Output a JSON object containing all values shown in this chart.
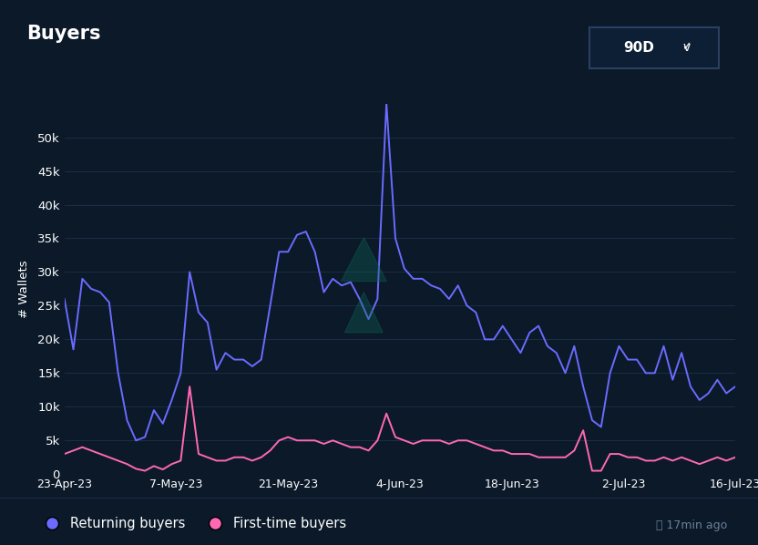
{
  "title": "Buyers",
  "badge_text": "90D  ⌄",
  "ylabel": "# Wallets",
  "footer_text": "⌛ 17min ago",
  "bg_color": "#0b1929",
  "plot_bg_color": "#0b1929",
  "grid_color": "#1a2e45",
  "returning_color": "#6b6bff",
  "firsttime_color": "#ff69b4",
  "ylim": [
    0,
    55000
  ],
  "yticks": [
    0,
    5000,
    10000,
    15000,
    20000,
    25000,
    30000,
    35000,
    40000,
    45000,
    50000
  ],
  "ytick_labels": [
    "0",
    "5k",
    "10k",
    "15k",
    "20k",
    "25k",
    "30k",
    "35k",
    "40k",
    "45k",
    "50k"
  ],
  "x_labels": [
    "23-Apr-23",
    "7-May-23",
    "21-May-23",
    "4-Jun-23",
    "18-Jun-23",
    "2-Jul-23",
    "16-Jul-23"
  ],
  "returning_buyers": [
    26000,
    18500,
    29000,
    27500,
    27000,
    25500,
    15000,
    8000,
    5000,
    5500,
    9500,
    7500,
    11000,
    15000,
    30000,
    24000,
    22500,
    15500,
    18000,
    17000,
    17000,
    16000,
    17000,
    25000,
    33000,
    33000,
    35500,
    36000,
    33000,
    27000,
    29000,
    28000,
    28500,
    26000,
    23000,
    26000,
    55000,
    35000,
    30500,
    29000,
    29000,
    28000,
    27500,
    26000,
    28000,
    25000,
    24000,
    20000,
    20000,
    22000,
    20000,
    18000,
    21000,
    22000,
    19000,
    18000,
    15000,
    19000,
    13000,
    8000,
    7000,
    15000,
    19000,
    17000,
    17000,
    15000,
    15000,
    19000,
    14000,
    18000,
    13000,
    11000,
    12000,
    14000,
    12000,
    13000
  ],
  "firsttime_buyers": [
    3000,
    3500,
    4000,
    3500,
    3000,
    2500,
    2000,
    1500,
    800,
    500,
    1200,
    700,
    1500,
    2000,
    13000,
    3000,
    2500,
    2000,
    2000,
    2500,
    2500,
    2000,
    2500,
    3500,
    5000,
    5500,
    5000,
    5000,
    5000,
    4500,
    5000,
    4500,
    4000,
    4000,
    3500,
    5000,
    9000,
    5500,
    5000,
    4500,
    5000,
    5000,
    5000,
    4500,
    5000,
    5000,
    4500,
    4000,
    3500,
    3500,
    3000,
    3000,
    3000,
    2500,
    2500,
    2500,
    2500,
    3500,
    6500,
    500,
    500,
    3000,
    3000,
    2500,
    2500,
    2000,
    2000,
    2500,
    2000,
    2500,
    2000,
    1500,
    2000,
    2500,
    2000,
    2500
  ],
  "legend_returning": "Returning buyers",
  "legend_firsttime": "First-time buyers",
  "badge_bg": "#0d1f35",
  "badge_border": "#2a4060"
}
